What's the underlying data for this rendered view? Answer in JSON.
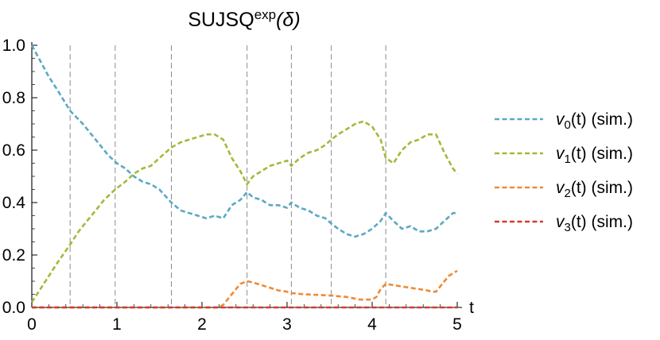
{
  "chart_data": {
    "type": "line",
    "title": {
      "base": "SUJSQ",
      "sup": "exp",
      "arg": "(δ)"
    },
    "xlabel": "t",
    "ylabel": "",
    "xlim": [
      0,
      5
    ],
    "ylim": [
      0,
      1
    ],
    "xticks": [
      0,
      1,
      2,
      3,
      4,
      5
    ],
    "xtick_labels": [
      "0",
      "1",
      "2",
      "3",
      "4",
      "5"
    ],
    "yticks": [
      0,
      0.2,
      0.4,
      0.6,
      0.8,
      1.0
    ],
    "ytick_labels": [
      "0.0",
      "0.2",
      "0.4",
      "0.6",
      "0.8",
      "1.0"
    ],
    "grid": false,
    "legend_position": "right",
    "vlines": [
      0.45,
      0.98,
      1.64,
      2.53,
      3.05,
      3.52,
      4.16
    ],
    "series": [
      {
        "name": "v0(t) (sim.)",
        "label_base": "v",
        "label_sub": "0",
        "label_rest": "(t) (sim.)",
        "color": "#5aa9c3",
        "x": [
          0,
          0.1,
          0.2,
          0.3,
          0.45,
          0.6,
          0.75,
          0.9,
          1.0,
          1.1,
          1.2,
          1.3,
          1.4,
          1.5,
          1.64,
          1.75,
          1.85,
          1.95,
          2.05,
          2.15,
          2.25,
          2.35,
          2.45,
          2.53,
          2.6,
          2.7,
          2.8,
          2.9,
          3.0,
          3.05,
          3.15,
          3.25,
          3.35,
          3.45,
          3.52,
          3.6,
          3.7,
          3.8,
          3.9,
          4.0,
          4.1,
          4.16,
          4.25,
          4.35,
          4.45,
          4.55,
          4.65,
          4.75,
          4.85,
          4.95,
          5.0
        ],
        "y": [
          1.0,
          0.94,
          0.88,
          0.83,
          0.75,
          0.7,
          0.64,
          0.58,
          0.55,
          0.53,
          0.5,
          0.48,
          0.47,
          0.45,
          0.4,
          0.37,
          0.36,
          0.35,
          0.34,
          0.35,
          0.34,
          0.39,
          0.41,
          0.44,
          0.42,
          0.41,
          0.39,
          0.39,
          0.38,
          0.4,
          0.38,
          0.37,
          0.35,
          0.34,
          0.32,
          0.3,
          0.28,
          0.27,
          0.28,
          0.3,
          0.33,
          0.36,
          0.33,
          0.3,
          0.31,
          0.29,
          0.29,
          0.3,
          0.33,
          0.36,
          0.36
        ]
      },
      {
        "name": "v1(t) (sim.)",
        "label_base": "v",
        "label_sub": "1",
        "label_rest": "(t) (sim.)",
        "color": "#9ebc3a",
        "x": [
          0,
          0.1,
          0.2,
          0.3,
          0.45,
          0.55,
          0.65,
          0.75,
          0.85,
          0.98,
          1.1,
          1.2,
          1.3,
          1.4,
          1.5,
          1.64,
          1.75,
          1.85,
          1.95,
          2.05,
          2.15,
          2.25,
          2.35,
          2.45,
          2.53,
          2.6,
          2.7,
          2.8,
          2.9,
          3.0,
          3.05,
          3.15,
          3.25,
          3.35,
          3.45,
          3.52,
          3.6,
          3.7,
          3.8,
          3.9,
          4.0,
          4.1,
          4.16,
          4.25,
          4.35,
          4.45,
          4.55,
          4.65,
          4.75,
          4.85,
          4.95,
          5.0
        ],
        "y": [
          0.02,
          0.07,
          0.12,
          0.17,
          0.24,
          0.29,
          0.33,
          0.37,
          0.41,
          0.45,
          0.48,
          0.51,
          0.53,
          0.54,
          0.57,
          0.61,
          0.63,
          0.64,
          0.65,
          0.66,
          0.66,
          0.64,
          0.57,
          0.52,
          0.47,
          0.5,
          0.52,
          0.54,
          0.55,
          0.56,
          0.54,
          0.57,
          0.59,
          0.6,
          0.62,
          0.64,
          0.66,
          0.68,
          0.7,
          0.71,
          0.69,
          0.64,
          0.57,
          0.55,
          0.6,
          0.63,
          0.64,
          0.66,
          0.66,
          0.59,
          0.53,
          0.51
        ]
      },
      {
        "name": "v2(t) (sim.)",
        "label_base": "v",
        "label_sub": "2",
        "label_rest": "(t) (sim.)",
        "color": "#ee8a35",
        "x": [
          0,
          2.2,
          2.25,
          2.3,
          2.35,
          2.4,
          2.45,
          2.53,
          2.6,
          2.7,
          2.8,
          2.9,
          3.0,
          3.05,
          3.2,
          3.35,
          3.52,
          3.7,
          3.85,
          4.0,
          4.05,
          4.1,
          4.16,
          4.25,
          4.35,
          4.45,
          4.55,
          4.65,
          4.7,
          4.75,
          4.85,
          4.9,
          4.95,
          5.0
        ],
        "y": [
          0.0,
          0.0,
          0.01,
          0.03,
          0.05,
          0.07,
          0.09,
          0.1,
          0.095,
          0.085,
          0.075,
          0.065,
          0.06,
          0.055,
          0.05,
          0.048,
          0.045,
          0.04,
          0.03,
          0.03,
          0.04,
          0.07,
          0.09,
          0.085,
          0.08,
          0.075,
          0.07,
          0.065,
          0.06,
          0.06,
          0.1,
          0.12,
          0.13,
          0.14
        ]
      },
      {
        "name": "v3(t) (sim.)",
        "label_base": "v",
        "label_sub": "3",
        "label_rest": "(t) (sim.)",
        "color": "#d63a2f",
        "x": [
          0,
          5.0
        ],
        "y": [
          0.0,
          0.0
        ]
      }
    ]
  }
}
